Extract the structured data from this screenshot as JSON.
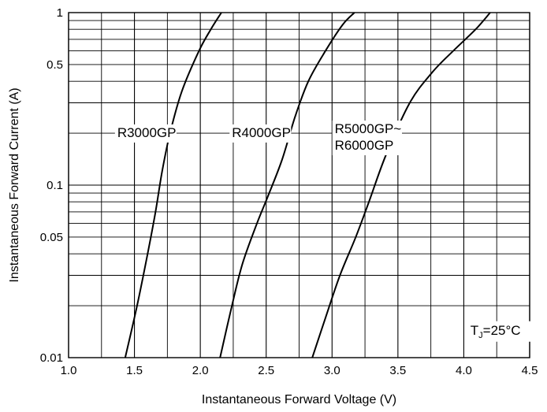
{
  "chart_data": {
    "type": "line",
    "title": "",
    "xlabel": "Instantaneous Forward Voltage (V)",
    "ylabel": "Instantaneous Forward Current (A)",
    "xlim": [
      1.0,
      4.5
    ],
    "ylim": [
      0.01,
      1
    ],
    "yscale": "log",
    "grid": true,
    "x_ticks": [
      1.0,
      1.5,
      2.0,
      2.5,
      3.0,
      3.5,
      4.0,
      4.5
    ],
    "x_tick_labels": [
      "1.0",
      "1.5",
      "2.0",
      "2.5",
      "3.0",
      "3.5",
      "4.0",
      "4.5"
    ],
    "y_ticks": [
      0.01,
      0.05,
      0.1,
      0.5,
      1
    ],
    "y_tick_labels": [
      "0.01",
      "0.05",
      "0.1",
      "0.5",
      "1"
    ],
    "series": [
      {
        "name": "R3000GP",
        "points": [
          [
            1.43,
            0.01
          ],
          [
            1.52,
            0.02
          ],
          [
            1.6,
            0.04
          ],
          [
            1.66,
            0.07
          ],
          [
            1.71,
            0.12
          ],
          [
            1.77,
            0.2
          ],
          [
            1.86,
            0.35
          ],
          [
            1.99,
            0.6
          ],
          [
            2.08,
            0.8
          ],
          [
            2.16,
            1.0
          ]
        ]
      },
      {
        "name": "R4000GP",
        "points": [
          [
            2.15,
            0.01
          ],
          [
            2.24,
            0.02
          ],
          [
            2.32,
            0.035
          ],
          [
            2.43,
            0.06
          ],
          [
            2.51,
            0.085
          ],
          [
            2.62,
            0.14
          ],
          [
            2.72,
            0.25
          ],
          [
            2.82,
            0.4
          ],
          [
            2.95,
            0.6
          ],
          [
            3.08,
            0.85
          ],
          [
            3.17,
            1.0
          ]
        ]
      },
      {
        "name": "R5000GP~R6000GP",
        "points": [
          [
            2.85,
            0.01
          ],
          [
            2.95,
            0.017
          ],
          [
            3.06,
            0.03
          ],
          [
            3.18,
            0.05
          ],
          [
            3.28,
            0.08
          ],
          [
            3.41,
            0.15
          ],
          [
            3.59,
            0.3
          ],
          [
            3.76,
            0.45
          ],
          [
            3.92,
            0.6
          ],
          [
            4.09,
            0.8
          ],
          [
            4.2,
            1.0
          ]
        ]
      }
    ],
    "curve_labels": [
      {
        "lines": [
          "R3000GP"
        ],
        "x": 1.37,
        "y": 0.19
      },
      {
        "lines": [
          "R4000GP"
        ],
        "x": 2.24,
        "y": 0.19
      },
      {
        "lines": [
          "R5000GP~",
          "R6000GP"
        ],
        "x": 3.02,
        "y": 0.2
      }
    ],
    "annotation": {
      "main": "T",
      "sub": "J",
      "rest": "=25°C",
      "x": 4.05,
      "y": 0.0136
    }
  }
}
